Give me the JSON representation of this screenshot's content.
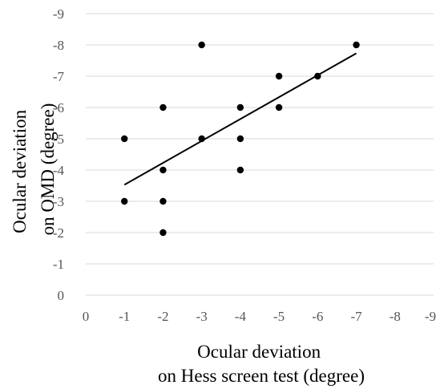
{
  "chart_data": {
    "type": "scatter",
    "title": "",
    "xlabel_lines": [
      "Ocular deviation",
      "on Hess screen test (degree)"
    ],
    "ylabel_lines": [
      "Ocular deviation",
      "on OMD (degree)"
    ],
    "xlim": [
      0,
      -9
    ],
    "ylim": [
      0,
      -9
    ],
    "x_ticks": [
      0,
      -1,
      -2,
      -3,
      -4,
      -5,
      -6,
      -7,
      -8,
      -9
    ],
    "x_tick_labels": [
      "0",
      "-1",
      "-2",
      "-3",
      "-4",
      "-5",
      "-6",
      "-7",
      "-8",
      "-9"
    ],
    "y_ticks": [
      0,
      -1,
      -2,
      -3,
      -4,
      -5,
      -6,
      -7,
      -8,
      -9
    ],
    "y_tick_labels": [
      "0",
      "-1",
      "-2",
      "-3",
      "-4",
      "-5",
      "-6",
      "-7",
      "-8",
      "-9"
    ],
    "grid": "horizontal",
    "legend": "none",
    "points": [
      {
        "x": -1,
        "y": -5
      },
      {
        "x": -1,
        "y": -3
      },
      {
        "x": -2,
        "y": -6
      },
      {
        "x": -2,
        "y": -4
      },
      {
        "x": -2,
        "y": -3
      },
      {
        "x": -2,
        "y": -2
      },
      {
        "x": -3,
        "y": -8
      },
      {
        "x": -3,
        "y": -5
      },
      {
        "x": -4,
        "y": -6
      },
      {
        "x": -4,
        "y": -5
      },
      {
        "x": -4,
        "y": -4
      },
      {
        "x": -5,
        "y": -7
      },
      {
        "x": -5,
        "y": -6
      },
      {
        "x": -6,
        "y": -7
      },
      {
        "x": -7,
        "y": -8
      }
    ],
    "trendline": {
      "x": [
        -1,
        -7
      ],
      "y": [
        -3.53,
        -7.73
      ]
    },
    "colors": {
      "point": "#000000",
      "trendline": "#000000",
      "grid": "#d9d9d9",
      "tick_text": "#555555",
      "axis_title": "#000000"
    }
  }
}
